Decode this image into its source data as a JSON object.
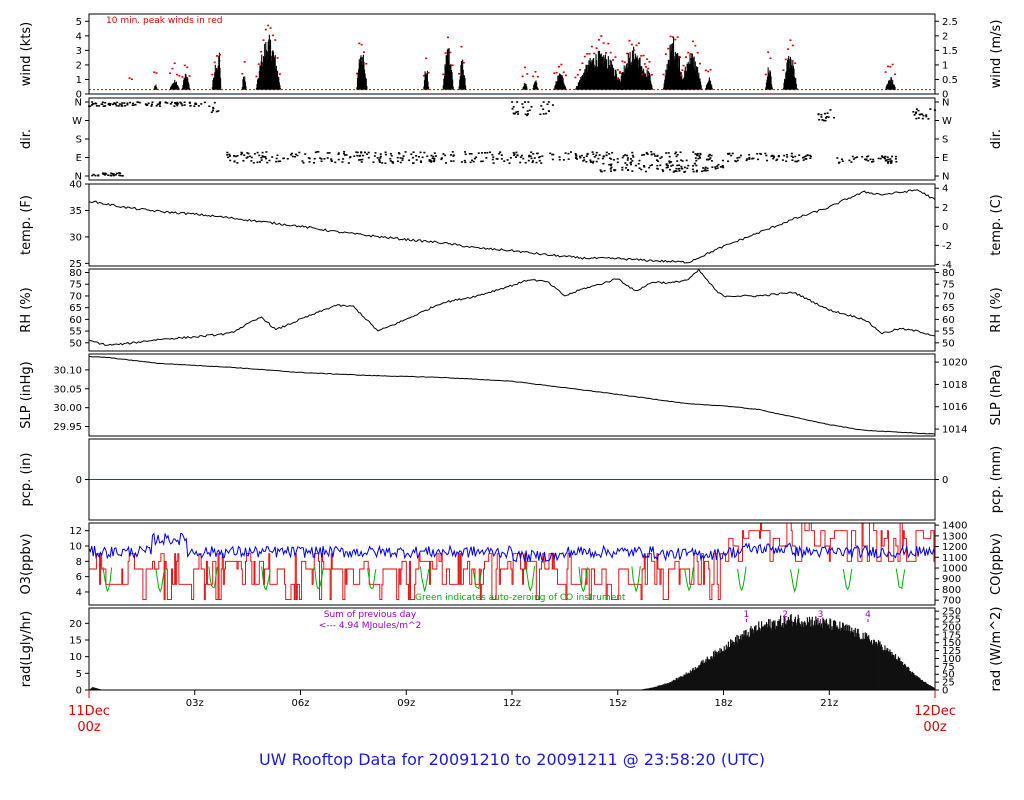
{
  "colors": {
    "red": "#e00000",
    "blue": "#0000ee",
    "green": "#00b000",
    "purple": "#9900cc",
    "frame": "#000000"
  },
  "title": "UW Rooftop Data for 20091210  to  20091211 @ 23:58:20  (UTC)",
  "x_axis": {
    "start_label": [
      "11Dec",
      "00z"
    ],
    "end_label": [
      "12Dec",
      "00z"
    ],
    "ticks": [
      "03z",
      "06z",
      "09z",
      "12z",
      "15z",
      "18z",
      "21z"
    ]
  },
  "chart_data": [
    {
      "type": "line",
      "panel": "wind",
      "ylabel_left": "wind (kts)",
      "ylabel_right": "wind (m/s)",
      "annotation": "10 min. peak winds in red",
      "left_ticks": [
        "0",
        "1",
        "2",
        "3",
        "4",
        "5"
      ],
      "ylim": [
        0,
        5.5
      ],
      "right_ticks": [
        "0",
        "0.5",
        "1",
        "1.5",
        "2",
        "2.5"
      ],
      "wind_bursts": [
        {
          "x": 1.15,
          "w": 0.1,
          "max": 0.3
        },
        {
          "x": 1.85,
          "w": 0.1,
          "max": 0.7
        },
        {
          "x": 2.3,
          "w": 0.28,
          "max": 1.0
        },
        {
          "x": 2.65,
          "w": 0.22,
          "max": 1.5
        },
        {
          "x": 3.5,
          "w": 0.25,
          "max": 2.5
        },
        {
          "x": 3.65,
          "w": 0.1,
          "max": 3.4
        },
        {
          "x": 4.35,
          "w": 0.12,
          "max": 1.5
        },
        {
          "x": 4.75,
          "w": 0.7,
          "max": 4.1
        },
        {
          "x": 7.6,
          "w": 0.3,
          "max": 3.5
        },
        {
          "x": 9.5,
          "w": 0.15,
          "max": 2.0
        },
        {
          "x": 10.05,
          "w": 0.3,
          "max": 3.6
        },
        {
          "x": 10.5,
          "w": 0.2,
          "max": 2.5
        },
        {
          "x": 12.3,
          "w": 0.15,
          "max": 0.8
        },
        {
          "x": 12.6,
          "w": 0.15,
          "max": 1.0
        },
        {
          "x": 13.2,
          "w": 0.35,
          "max": 1.5
        },
        {
          "x": 13.8,
          "w": 1.4,
          "max": 3.0
        },
        {
          "x": 15.0,
          "w": 0.9,
          "max": 3.3
        },
        {
          "x": 15.7,
          "w": 0.3,
          "max": 1.8
        },
        {
          "x": 16.3,
          "w": 0.6,
          "max": 4.0
        },
        {
          "x": 16.8,
          "w": 0.6,
          "max": 3.0
        },
        {
          "x": 17.5,
          "w": 0.2,
          "max": 1.2
        },
        {
          "x": 19.2,
          "w": 0.2,
          "max": 2.0
        },
        {
          "x": 19.7,
          "w": 0.4,
          "max": 2.8
        },
        {
          "x": 22.6,
          "w": 0.3,
          "max": 1.2
        }
      ]
    },
    {
      "type": "scatter",
      "panel": "dir",
      "ylabel_left": "dir.",
      "ylabel_right": "dir.",
      "left_ticks": [
        "N",
        "E",
        "S",
        "W",
        "N"
      ],
      "right_ticks": [
        "N",
        "E",
        "S",
        "W",
        "N"
      ],
      "ylim": [
        0,
        360
      ]
    },
    {
      "type": "line",
      "panel": "temp",
      "ylabel_left": "temp. (F)",
      "ylabel_right": "temp. (C)",
      "left_ticks": [
        "25",
        "30",
        "35",
        "40"
      ],
      "ylim": [
        24.5,
        40
      ],
      "right_ticks": [
        "-4",
        "-2",
        "0",
        "2",
        "4"
      ],
      "x": [
        0,
        1,
        2,
        3,
        4,
        5,
        6,
        7,
        8,
        9,
        10,
        11,
        12,
        13,
        14,
        15,
        16,
        17,
        18,
        19,
        20,
        21,
        21.5,
        22,
        22.5,
        23,
        23.5,
        24
      ],
      "y": [
        36.8,
        35.6,
        34.8,
        34.3,
        33.6,
        32.8,
        32.0,
        31.0,
        30.2,
        29.5,
        28.9,
        27.9,
        27.4,
        26.6,
        26.0,
        25.9,
        25.5,
        25.2,
        28.2,
        30.8,
        33.4,
        35.6,
        37.2,
        38.5,
        38.0,
        38.4,
        38.9,
        37.0
      ]
    },
    {
      "type": "line",
      "panel": "rh",
      "ylabel_left": "RH (%)",
      "ylabel_right": "RH (%)",
      "left_ticks": [
        "50",
        "55",
        "60",
        "65",
        "70",
        "75",
        "80"
      ],
      "ylim": [
        46.5,
        81.5
      ],
      "right_ticks": [
        "50",
        "55",
        "60",
        "65",
        "70",
        "75",
        "80"
      ],
      "x": [
        0,
        0.5,
        1,
        2,
        3,
        4,
        4.5,
        4.9,
        5.3,
        6,
        7,
        7.5,
        8,
        8.2,
        9,
        10,
        11,
        12,
        12.5,
        13,
        13.5,
        14,
        14.5,
        15,
        15.5,
        16,
        16.5,
        17,
        17.3,
        17.8,
        18,
        19,
        20,
        21,
        22,
        22.5,
        23,
        23.5,
        24
      ],
      "y": [
        51.0,
        49.0,
        49.5,
        51.5,
        52.5,
        54.0,
        58.0,
        61.0,
        55.5,
        60.0,
        66.0,
        65.5,
        58.0,
        55.0,
        60.0,
        67.0,
        70.0,
        74.5,
        77.0,
        76.0,
        70.0,
        73.0,
        75.0,
        77.5,
        72.0,
        76.0,
        75.5,
        77.0,
        81.0,
        72.0,
        70.0,
        70.0,
        71.5,
        64.0,
        60.0,
        54.0,
        56.0,
        55.0,
        53.0
      ]
    },
    {
      "type": "line",
      "panel": "slp",
      "ylabel_left": "SLP (inHg)",
      "ylabel_right": "SLP (hPa)",
      "left_ticks": [
        "29.95",
        "30.00",
        "30.05",
        "30.10"
      ],
      "ylim": [
        29.925,
        30.142
      ],
      "right_ticks": [
        "1014",
        "1016",
        "1018",
        "1020"
      ],
      "x": [
        0,
        0.5,
        2,
        4,
        6,
        8,
        10,
        12,
        14,
        16,
        17,
        18,
        19,
        20,
        21,
        22,
        23,
        24
      ],
      "y": [
        30.135,
        30.133,
        30.117,
        30.107,
        30.093,
        30.085,
        30.08,
        30.07,
        30.047,
        30.023,
        30.01,
        30.005,
        29.995,
        29.975,
        29.955,
        29.94,
        29.935,
        29.93
      ]
    },
    {
      "type": "line",
      "panel": "pcp",
      "ylabel_left": "pcp. (in)",
      "ylabel_right": "pcp. (mm)",
      "left_ticks": [
        "0"
      ],
      "right_ticks": [
        "0"
      ],
      "ylim": [
        -1,
        1
      ]
    },
    {
      "type": "line",
      "panel": "chem",
      "ylabel_left": "O3(ppbv)",
      "ylabel_right": "CO(ppbv)",
      "annotation": "Green indicates auto-zeroing of CO instrument",
      "left_ticks": [
        "4",
        "6",
        "8",
        "10",
        "12"
      ],
      "ylim": [
        2.3,
        13.0
      ],
      "right_ticks": [
        "700",
        "800",
        "900",
        "1000",
        "1100",
        "1200",
        "1300",
        "1400"
      ],
      "zeroing_hours": [
        0.4,
        1.9,
        3.4,
        4.9,
        6.4,
        7.9,
        9.4,
        10.9,
        12.4,
        13.9,
        15.4,
        16.9,
        18.4,
        19.9,
        21.4,
        22.9
      ]
    },
    {
      "type": "area",
      "panel": "rad",
      "ylabel_left": "rad(Lgly/hr)",
      "ylabel_right": "rad (W/m^2)",
      "annotation": [
        "Sum of previous day",
        "<--- 4.94 MJoules/m^2"
      ],
      "markers": [
        "1",
        "2",
        "3",
        "4"
      ],
      "left_ticks": [
        "0",
        "5",
        "10",
        "15",
        "20"
      ],
      "ylim": [
        0,
        24.6
      ],
      "right_ticks": [
        "0",
        "25",
        "50",
        "75",
        "100",
        "125",
        "150",
        "175",
        "200",
        "225",
        "250"
      ],
      "x": [
        0,
        15.6,
        16.0,
        16.5,
        17.0,
        17.5,
        18.0,
        18.5,
        19.0,
        19.5,
        20.0,
        20.5,
        21.0,
        21.5,
        22.0,
        22.5,
        23.0,
        23.5,
        24.0
      ],
      "y": [
        0,
        0,
        0.8,
        2.5,
        5.5,
        9.5,
        13.5,
        17.0,
        20.0,
        21.5,
        22.5,
        22.0,
        21.0,
        19.5,
        17.0,
        14.0,
        9.5,
        4.0,
        0.5
      ]
    }
  ]
}
